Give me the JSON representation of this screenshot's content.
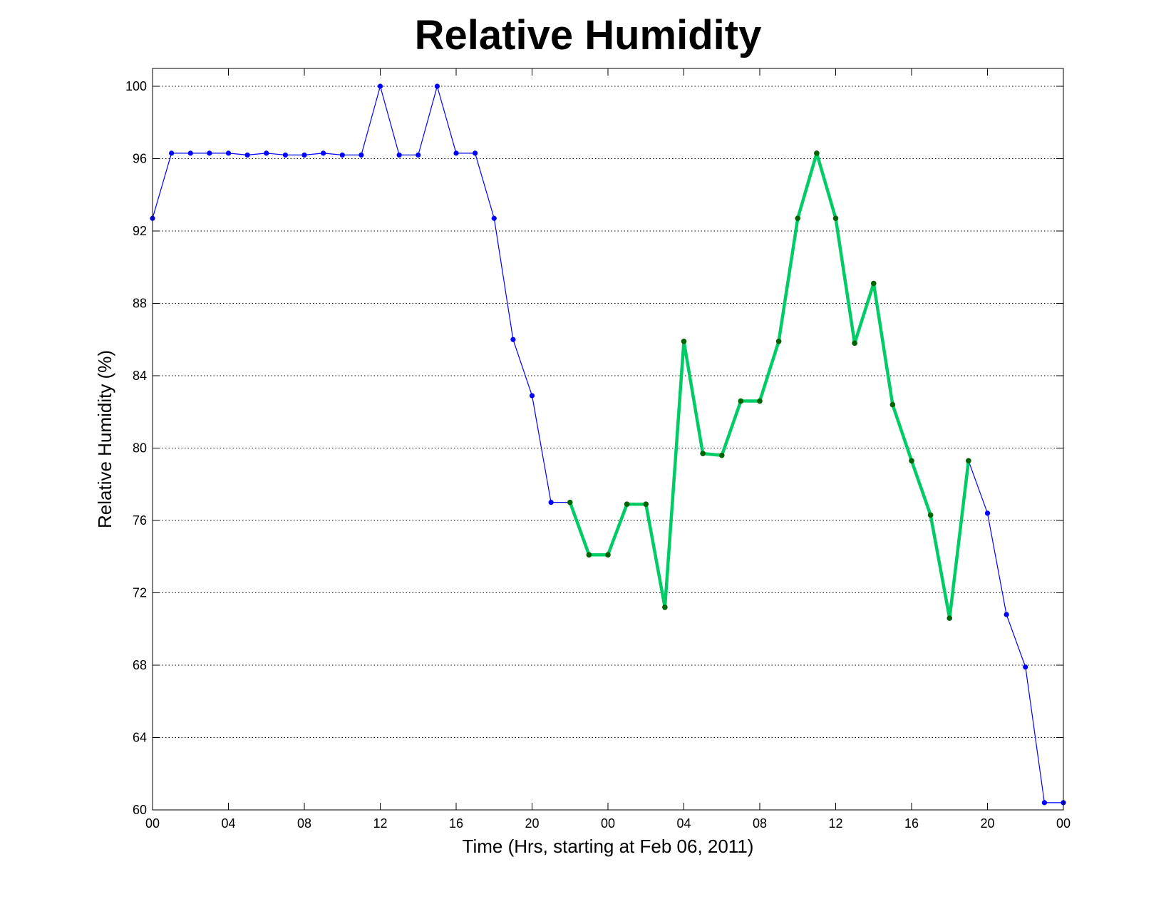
{
  "chart_data": {
    "type": "line",
    "title": "Relative Humidity",
    "xlabel": "Time (Hrs, starting at Feb 06, 2011)",
    "ylabel": "Relative Humidity (%)",
    "ylim": [
      60,
      100
    ],
    "xlim": [
      0,
      48
    ],
    "grid": "horizontal dotted",
    "x_ticks": [
      0,
      4,
      8,
      12,
      16,
      20,
      24,
      28,
      32,
      36,
      40,
      44,
      48
    ],
    "x_tick_labels": [
      "00",
      "04",
      "08",
      "12",
      "16",
      "20",
      "00",
      "04",
      "08",
      "12",
      "16",
      "20",
      "00"
    ],
    "y_ticks": [
      60,
      64,
      68,
      72,
      76,
      80,
      84,
      88,
      92,
      96,
      100
    ],
    "y_tick_labels": [
      "60",
      "64",
      "68",
      "72",
      "76",
      "80",
      "84",
      "88",
      "92",
      "96",
      "100"
    ],
    "series": [
      {
        "color": "#0000ff",
        "marker_color": "#0000ff",
        "style": "thin",
        "x": [
          0,
          1,
          2,
          3,
          4,
          5,
          6,
          7,
          8,
          9,
          10,
          11,
          12,
          13,
          14,
          15,
          16,
          17,
          18,
          19,
          20,
          21,
          22,
          23,
          24,
          25,
          26,
          27,
          28,
          29,
          30,
          31,
          32,
          33,
          34,
          35,
          36,
          37,
          38,
          39,
          40,
          41,
          42,
          43,
          44,
          45,
          46,
          47,
          48
        ],
        "values": [
          92.7,
          96.3,
          96.3,
          96.3,
          96.3,
          96.2,
          96.3,
          96.2,
          96.2,
          96.3,
          96.2,
          96.2,
          100,
          96.2,
          96.2,
          100,
          96.3,
          96.3,
          92.7,
          86.0,
          82.9,
          77.0,
          77.0,
          74.1,
          74.1,
          76.9,
          76.9,
          71.2,
          85.9,
          79.7,
          79.6,
          82.6,
          82.6,
          85.9,
          92.7,
          96.3,
          92.7,
          85.8,
          89.1,
          82.4,
          79.3,
          76.3,
          70.6,
          79.3,
          76.4,
          70.8,
          67.9,
          60.4,
          60.4
        ]
      },
      {
        "color": "#00cc66",
        "marker_color": "#006400",
        "style": "thick",
        "x": [
          22,
          23,
          24,
          25,
          26,
          27,
          28,
          29,
          30,
          31,
          32,
          33,
          34,
          35,
          36,
          37,
          38,
          39,
          40,
          41,
          42,
          43
        ],
        "values": [
          77.0,
          74.1,
          74.1,
          76.9,
          76.9,
          71.2,
          85.9,
          79.7,
          79.6,
          82.6,
          82.6,
          85.9,
          92.7,
          96.3,
          92.7,
          85.8,
          89.1,
          82.4,
          79.3,
          76.3,
          70.6,
          79.3
        ]
      }
    ]
  }
}
